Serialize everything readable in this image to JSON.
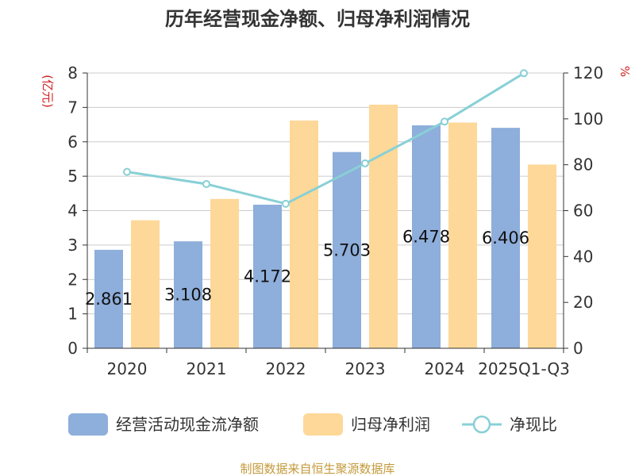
{
  "title": "历年经营现金净额、归母净利润情况",
  "source": "制图数据来自恒生聚源数据库",
  "colors": {
    "bar_cash": "#8eaedb",
    "bar_profit": "#fdd898",
    "line": "#88d0d6",
    "axis": "#333333",
    "grid": "#cccccc",
    "unit": "#d12020",
    "source": "#c49a3a"
  },
  "chart_data": {
    "type": "bar",
    "title": "历年经营现金净额、归母净利润情况",
    "categories": [
      "2020",
      "2021",
      "2022",
      "2023",
      "2024",
      "2025Q1-Q3"
    ],
    "y_left": {
      "unit": "(亿元)",
      "min": 0,
      "max": 8,
      "ticks": [
        0,
        1,
        2,
        3,
        4,
        5,
        6,
        7,
        8
      ]
    },
    "y_right": {
      "unit": "%",
      "min": 0,
      "max": 120,
      "ticks": [
        0,
        20,
        40,
        60,
        80,
        100,
        120
      ]
    },
    "grid": true,
    "legend_position": "bottom",
    "series": [
      {
        "name": "经营活动现金流净额",
        "kind": "bar",
        "axis": "left",
        "values": [
          2.861,
          3.108,
          4.172,
          5.703,
          6.478,
          6.406
        ],
        "labels": [
          "2.861",
          "3.108",
          "4.172",
          "5.703",
          "6.478",
          "6.406"
        ]
      },
      {
        "name": "归母净利润",
        "kind": "bar",
        "axis": "left",
        "values": [
          3.72,
          4.34,
          6.62,
          7.08,
          6.56,
          5.34
        ]
      },
      {
        "name": "净现比",
        "kind": "line",
        "axis": "right",
        "values": [
          76.9,
          71.6,
          63.0,
          80.6,
          98.8,
          119.9
        ]
      }
    ]
  }
}
